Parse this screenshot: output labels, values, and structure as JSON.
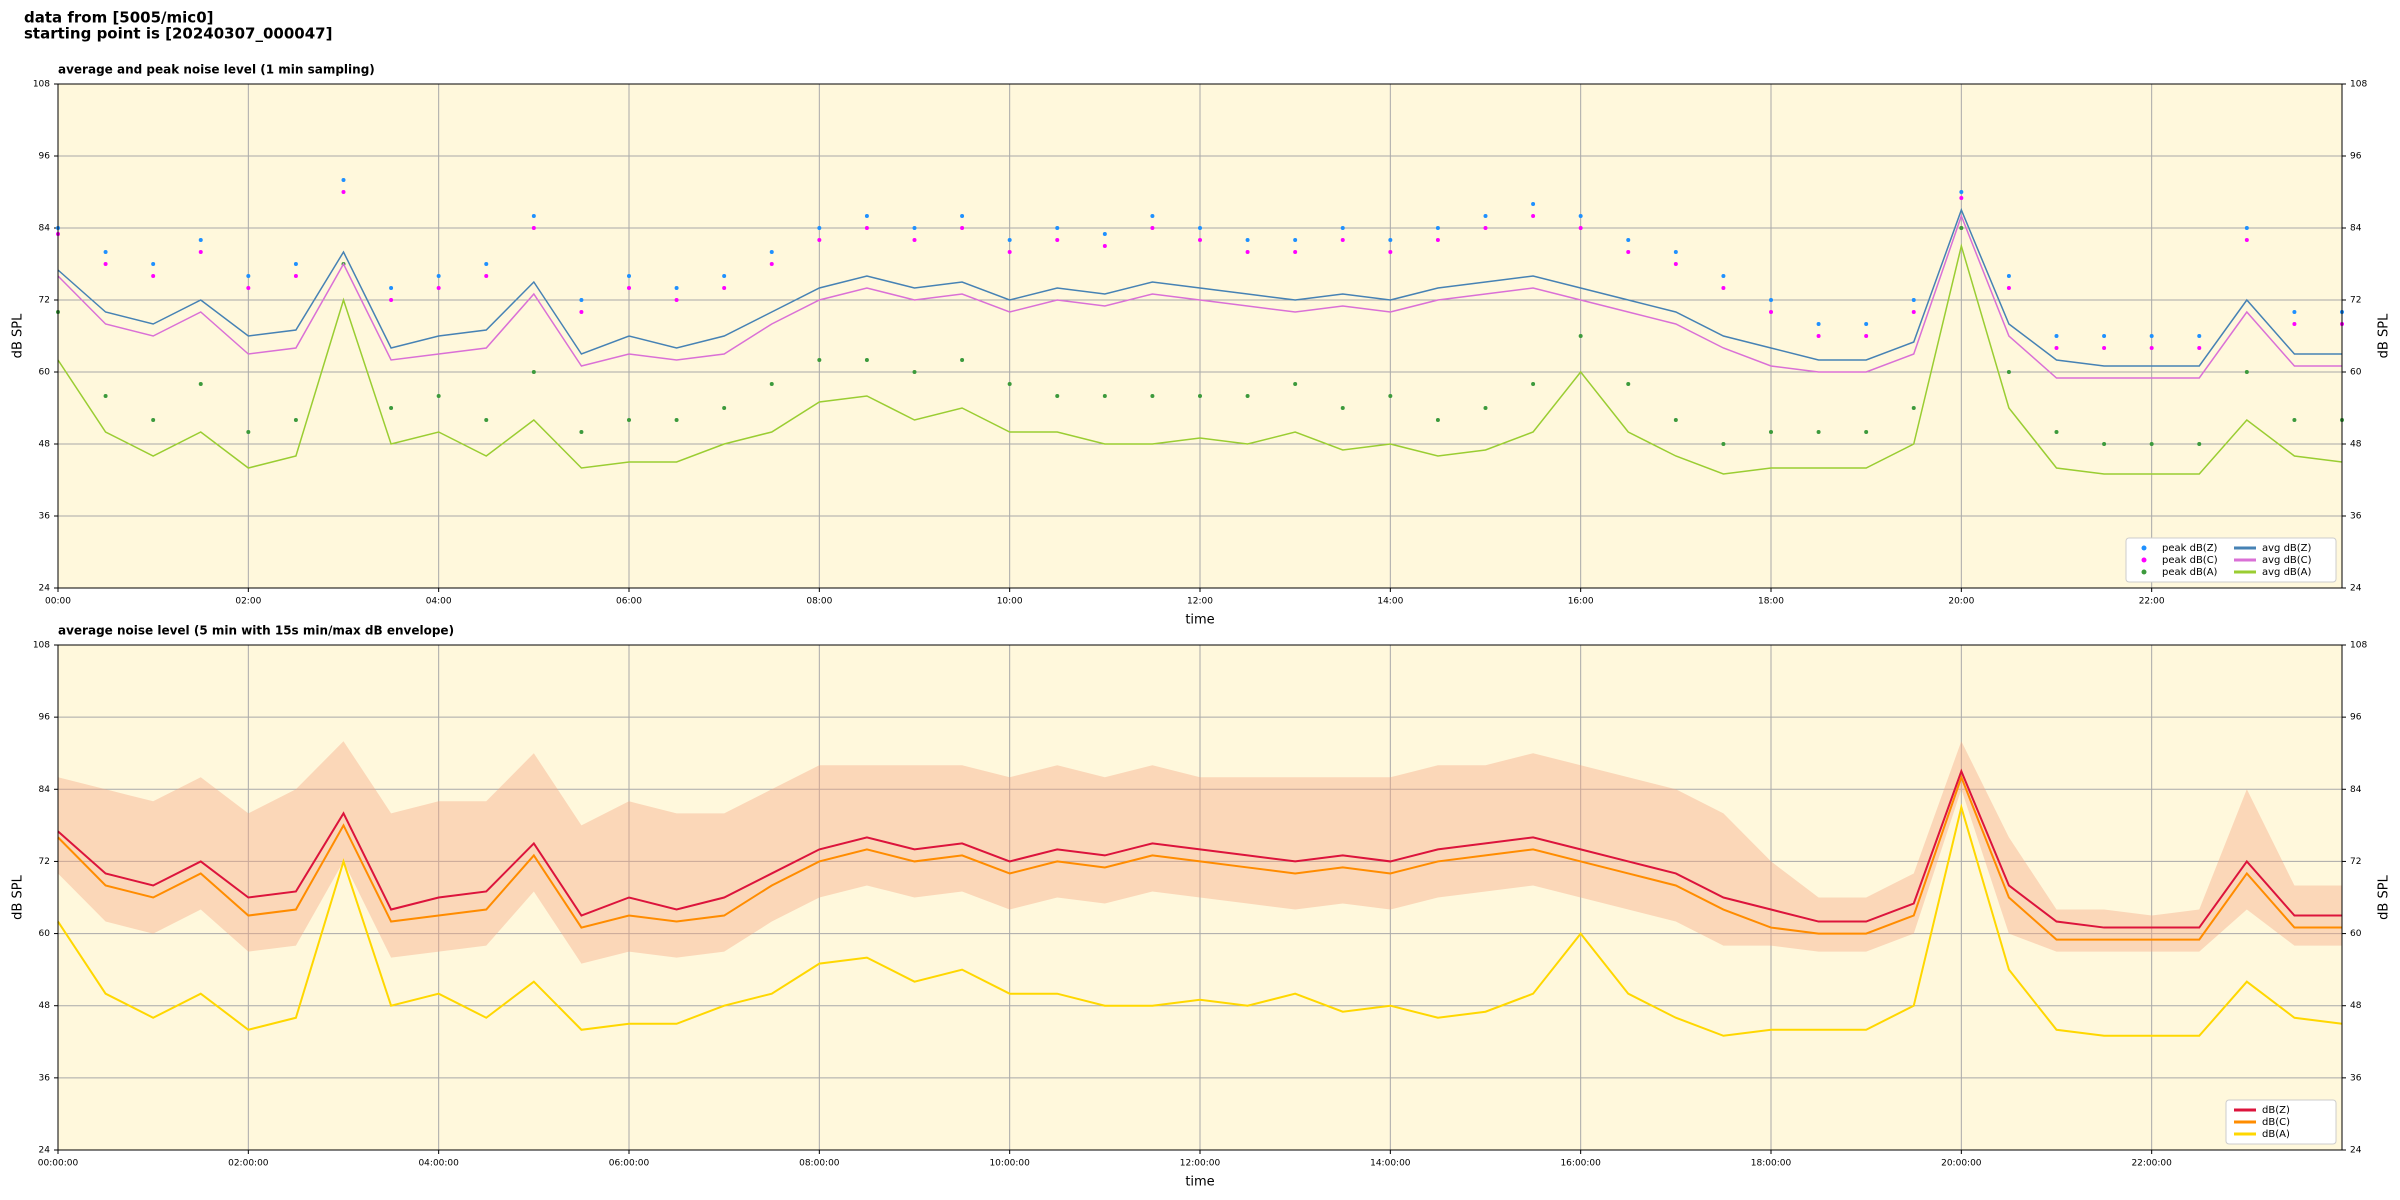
{
  "header": {
    "line1": "data from [5005/mic0]",
    "line2": "starting point is [20240307_000047]"
  },
  "chart_data": [
    {
      "type": "line",
      "title": "average and peak noise level (1 min sampling)",
      "x_label": "time",
      "y_label": "dB SPL",
      "x": [
        0,
        0.5,
        1,
        1.5,
        2,
        2.5,
        3,
        3.5,
        4,
        4.5,
        5,
        5.5,
        6,
        6.5,
        7,
        7.5,
        8,
        8.5,
        9,
        9.5,
        10,
        10.5,
        11,
        11.5,
        12,
        12.5,
        13,
        13.5,
        14,
        14.5,
        15,
        15.5,
        16,
        16.5,
        17,
        17.5,
        18,
        18.5,
        19,
        19.5,
        20,
        20.5,
        21,
        21.5,
        22,
        22.5,
        23,
        23.5,
        24
      ],
      "xlim": [
        0,
        24
      ],
      "xticks": [
        {
          "value": 0,
          "label": "00:00"
        },
        {
          "value": 2,
          "label": "02:00"
        },
        {
          "value": 4,
          "label": "04:00"
        },
        {
          "value": 6,
          "label": "06:00"
        },
        {
          "value": 8,
          "label": "08:00"
        },
        {
          "value": 10,
          "label": "10:00"
        },
        {
          "value": 12,
          "label": "12:00"
        },
        {
          "value": 14,
          "label": "14:00"
        },
        {
          "value": 16,
          "label": "16:00"
        },
        {
          "value": 18,
          "label": "18:00"
        },
        {
          "value": 20,
          "label": "20:00"
        },
        {
          "value": 22,
          "label": "22:00"
        }
      ],
      "ylim": [
        24,
        108
      ],
      "yticks": [
        24,
        36,
        48,
        60,
        72,
        84,
        96,
        108
      ],
      "grid": true,
      "legend": "lower right",
      "legend_columns": 2,
      "series": [
        {
          "name": "peak dB(Z)",
          "type": "scatter",
          "color": "#1e90ff",
          "values": [
            84,
            80,
            78,
            82,
            76,
            78,
            92,
            74,
            76,
            78,
            86,
            72,
            76,
            74,
            76,
            80,
            84,
            86,
            84,
            86,
            82,
            84,
            83,
            86,
            84,
            82,
            82,
            84,
            82,
            84,
            86,
            88,
            86,
            82,
            80,
            76,
            72,
            68,
            68,
            72,
            90,
            76,
            66,
            66,
            66,
            66,
            84,
            70,
            70
          ]
        },
        {
          "name": "peak dB(C)",
          "type": "scatter",
          "color": "#ff00ff",
          "values": [
            83,
            78,
            76,
            80,
            74,
            76,
            90,
            72,
            74,
            76,
            84,
            70,
            74,
            72,
            74,
            78,
            82,
            84,
            82,
            84,
            80,
            82,
            81,
            84,
            82,
            80,
            80,
            82,
            80,
            82,
            84,
            86,
            84,
            80,
            78,
            74,
            70,
            66,
            66,
            70,
            89,
            74,
            64,
            64,
            64,
            64,
            82,
            68,
            68
          ]
        },
        {
          "name": "peak dB(A)",
          "type": "scatter",
          "color": "#3c9a3c",
          "values": [
            70,
            56,
            52,
            58,
            50,
            52,
            78,
            54,
            56,
            52,
            60,
            50,
            52,
            52,
            54,
            58,
            62,
            62,
            60,
            62,
            58,
            56,
            56,
            56,
            56,
            56,
            58,
            54,
            56,
            52,
            54,
            58,
            66,
            58,
            52,
            48,
            50,
            50,
            50,
            54,
            84,
            60,
            50,
            48,
            48,
            48,
            60,
            52,
            52
          ]
        },
        {
          "name": "avg dB(Z)",
          "type": "line",
          "color": "#4682b4",
          "values": [
            77,
            70,
            68,
            72,
            66,
            67,
            80,
            64,
            66,
            67,
            75,
            63,
            66,
            64,
            66,
            70,
            74,
            76,
            74,
            75,
            72,
            74,
            73,
            75,
            74,
            73,
            72,
            73,
            72,
            74,
            75,
            76,
            74,
            72,
            70,
            66,
            64,
            62,
            62,
            65,
            87,
            68,
            62,
            61,
            61,
            61,
            72,
            63,
            63
          ]
        },
        {
          "name": "avg dB(C)",
          "type": "line",
          "color": "#da70d6",
          "values": [
            76,
            68,
            66,
            70,
            63,
            64,
            78,
            62,
            63,
            64,
            73,
            61,
            63,
            62,
            63,
            68,
            72,
            74,
            72,
            73,
            70,
            72,
            71,
            73,
            72,
            71,
            70,
            71,
            70,
            72,
            73,
            74,
            72,
            70,
            68,
            64,
            61,
            60,
            60,
            63,
            86,
            66,
            59,
            59,
            59,
            59,
            70,
            61,
            61
          ]
        },
        {
          "name": "avg dB(A)",
          "type": "line",
          "color": "#9acd32",
          "values": [
            62,
            50,
            46,
            50,
            44,
            46,
            72,
            48,
            50,
            46,
            52,
            44,
            45,
            45,
            48,
            50,
            55,
            56,
            52,
            54,
            50,
            50,
            48,
            48,
            49,
            48,
            50,
            47,
            48,
            46,
            47,
            50,
            60,
            50,
            46,
            43,
            44,
            44,
            44,
            48,
            81,
            54,
            44,
            43,
            43,
            43,
            52,
            46,
            45
          ]
        }
      ]
    },
    {
      "type": "line",
      "title": "average noise level (5 min with 15s min/max dB envelope)",
      "x_label": "time",
      "y_label": "dB SPL",
      "x": [
        0,
        0.5,
        1,
        1.5,
        2,
        2.5,
        3,
        3.5,
        4,
        4.5,
        5,
        5.5,
        6,
        6.5,
        7,
        7.5,
        8,
        8.5,
        9,
        9.5,
        10,
        10.5,
        11,
        11.5,
        12,
        12.5,
        13,
        13.5,
        14,
        14.5,
        15,
        15.5,
        16,
        16.5,
        17,
        17.5,
        18,
        18.5,
        19,
        19.5,
        20,
        20.5,
        21,
        21.5,
        22,
        22.5,
        23,
        23.5,
        24
      ],
      "xlim": [
        0,
        24
      ],
      "xticks": [
        {
          "value": 0,
          "label": "00:00:00"
        },
        {
          "value": 2,
          "label": "02:00:00"
        },
        {
          "value": 4,
          "label": "04:00:00"
        },
        {
          "value": 6,
          "label": "06:00:00"
        },
        {
          "value": 8,
          "label": "08:00:00"
        },
        {
          "value": 10,
          "label": "10:00:00"
        },
        {
          "value": 12,
          "label": "12:00:00"
        },
        {
          "value": 14,
          "label": "14:00:00"
        },
        {
          "value": 16,
          "label": "16:00:00"
        },
        {
          "value": 18,
          "label": "18:00:00"
        },
        {
          "value": 20,
          "label": "20:00:00"
        },
        {
          "value": 22,
          "label": "22:00:00"
        }
      ],
      "ylim": [
        24,
        108
      ],
      "yticks": [
        24,
        36,
        48,
        60,
        72,
        84,
        96,
        108
      ],
      "grid": true,
      "legend": "lower right",
      "legend_columns": 1,
      "envelope": {
        "color": "#f4a582",
        "min": [
          70,
          62,
          60,
          64,
          57,
          58,
          72,
          56,
          57,
          58,
          67,
          55,
          57,
          56,
          57,
          62,
          66,
          68,
          66,
          67,
          64,
          66,
          65,
          67,
          66,
          65,
          64,
          65,
          64,
          66,
          67,
          68,
          66,
          64,
          62,
          58,
          58,
          57,
          57,
          60,
          84,
          60,
          57,
          57,
          57,
          57,
          64,
          58,
          58
        ],
        "max": [
          86,
          84,
          82,
          86,
          80,
          84,
          92,
          80,
          82,
          82,
          90,
          78,
          82,
          80,
          80,
          84,
          88,
          88,
          88,
          88,
          86,
          88,
          86,
          88,
          86,
          86,
          86,
          86,
          86,
          88,
          88,
          90,
          88,
          86,
          84,
          80,
          72,
          66,
          66,
          70,
          92,
          76,
          64,
          64,
          63,
          64,
          84,
          68,
          68
        ]
      },
      "series": [
        {
          "name": "dB(Z)",
          "type": "line",
          "color": "#dc143c",
          "values": [
            77,
            70,
            68,
            72,
            66,
            67,
            80,
            64,
            66,
            67,
            75,
            63,
            66,
            64,
            66,
            70,
            74,
            76,
            74,
            75,
            72,
            74,
            73,
            75,
            74,
            73,
            72,
            73,
            72,
            74,
            75,
            76,
            74,
            72,
            70,
            66,
            64,
            62,
            62,
            65,
            87,
            68,
            62,
            61,
            61,
            61,
            72,
            63,
            63
          ]
        },
        {
          "name": "dB(C)",
          "type": "line",
          "color": "#ff8c00",
          "values": [
            76,
            68,
            66,
            70,
            63,
            64,
            78,
            62,
            63,
            64,
            73,
            61,
            63,
            62,
            63,
            68,
            72,
            74,
            72,
            73,
            70,
            72,
            71,
            73,
            72,
            71,
            70,
            71,
            70,
            72,
            73,
            74,
            72,
            70,
            68,
            64,
            61,
            60,
            60,
            63,
            86,
            66,
            59,
            59,
            59,
            59,
            70,
            61,
            61
          ]
        },
        {
          "name": "dB(A)",
          "type": "line",
          "color": "#ffd700",
          "values": [
            62,
            50,
            46,
            50,
            44,
            46,
            72,
            48,
            50,
            46,
            52,
            44,
            45,
            45,
            48,
            50,
            55,
            56,
            52,
            54,
            50,
            50,
            48,
            48,
            49,
            48,
            50,
            47,
            48,
            46,
            47,
            50,
            60,
            50,
            46,
            43,
            44,
            44,
            44,
            48,
            81,
            54,
            44,
            43,
            43,
            43,
            52,
            46,
            45
          ]
        }
      ]
    }
  ]
}
